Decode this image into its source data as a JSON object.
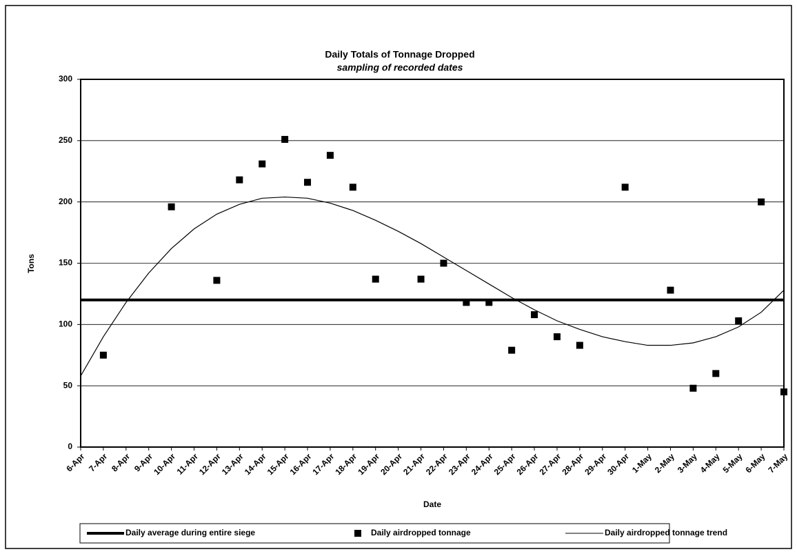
{
  "chart_data": {
    "type": "scatter",
    "title": "Daily Totals of Tonnage Dropped",
    "subtitle": "sampling of recorded dates",
    "x_label": "Date",
    "y_label": "Tons",
    "categories": [
      "6-Apr",
      "7-Apr",
      "8-Apr",
      "9-Apr",
      "10-Apr",
      "11-Apr",
      "12-Apr",
      "13-Apr",
      "14-Apr",
      "15-Apr",
      "16-Apr",
      "17-Apr",
      "18-Apr",
      "19-Apr",
      "20-Apr",
      "21-Apr",
      "22-Apr",
      "23-Apr",
      "24-Apr",
      "25-Apr",
      "26-Apr",
      "27-Apr",
      "28-Apr",
      "29-Apr",
      "30-Apr",
      "1-May",
      "2-May",
      "3-May",
      "4-May",
      "5-May",
      "6-May",
      "7-May"
    ],
    "average_line": {
      "name": "Daily average during entire siege",
      "color": "#000000",
      "value": 120
    },
    "series": [
      {
        "name": "Daily airdropped tonnage",
        "color": "#000000",
        "values": [
          null,
          75,
          null,
          null,
          196,
          null,
          136,
          218,
          231,
          251,
          216,
          238,
          212,
          137,
          null,
          137,
          150,
          118,
          118,
          79,
          108,
          90,
          83,
          null,
          212,
          null,
          128,
          48,
          60,
          103,
          200,
          45
        ]
      },
      {
        "name": "Daily airdropped tonnage trend",
        "color": "#000000",
        "values": [
          58,
          90,
          118,
          142,
          162,
          178,
          190,
          198,
          203,
          204,
          203,
          199,
          193,
          185,
          176,
          166,
          155,
          144,
          133,
          122,
          112,
          103,
          96,
          90,
          86,
          83,
          83,
          85,
          90,
          98,
          110,
          128
        ]
      }
    ],
    "ylim": [
      0,
      300
    ],
    "yticks": [
      0,
      50,
      100,
      150,
      200,
      250,
      300
    ],
    "grid": true
  }
}
